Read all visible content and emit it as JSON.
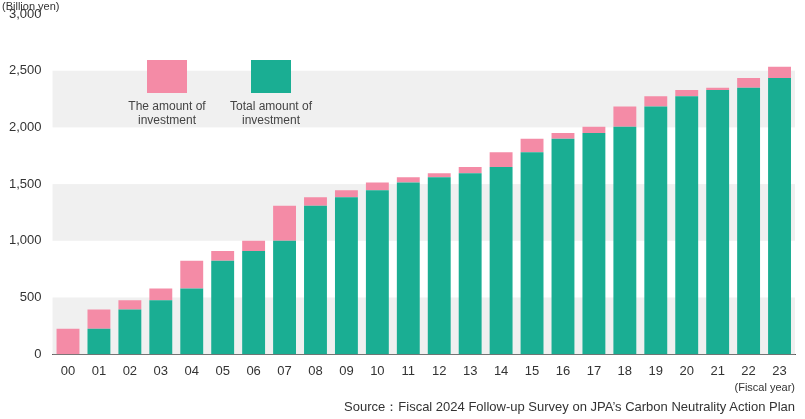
{
  "chart_data": {
    "type": "bar",
    "stacked": true,
    "ylabel": "(Billion yen)",
    "xlabel": "(Fiscal year)",
    "annotations": [
      "Source：Fiscal 2024 Follow-up Survey on JPA’s Carbon Neutrality Action Plan"
    ],
    "categories": [
      "00",
      "01",
      "02",
      "03",
      "04",
      "05",
      "06",
      "07",
      "08",
      "09",
      "10",
      "11",
      "12",
      "13",
      "14",
      "15",
      "16",
      "17",
      "18",
      "19",
      "20",
      "21",
      "22",
      "23"
    ],
    "series": [
      {
        "name": "Total amount of investment",
        "color": "#1aae93",
        "values": [
          0,
          225,
          395,
          475,
          580,
          825,
          910,
          1000,
          1310,
          1385,
          1445,
          1515,
          1560,
          1595,
          1650,
          1780,
          1900,
          1950,
          2005,
          2185,
          2275,
          2330,
          2350,
          2435
        ]
      },
      {
        "name": "The amount of investment",
        "color": "#f48ba6",
        "values": [
          225,
          170,
          80,
          105,
          245,
          85,
          90,
          310,
          75,
          60,
          70,
          45,
          35,
          55,
          130,
          120,
          50,
          55,
          180,
          90,
          55,
          20,
          85,
          100
        ]
      }
    ],
    "ylim": [
      0,
      3000
    ],
    "yticks": [
      0,
      500,
      {
        "value": 1000,
        "label": "1,000"
      },
      {
        "value": 1500,
        "label": "1,500"
      },
      {
        "value": 2000,
        "label": "2,000"
      },
      {
        "value": 2500,
        "label": "2,500"
      },
      {
        "value": 3000,
        "label": "3,000"
      }
    ],
    "grid": true,
    "legend": "top-left"
  }
}
